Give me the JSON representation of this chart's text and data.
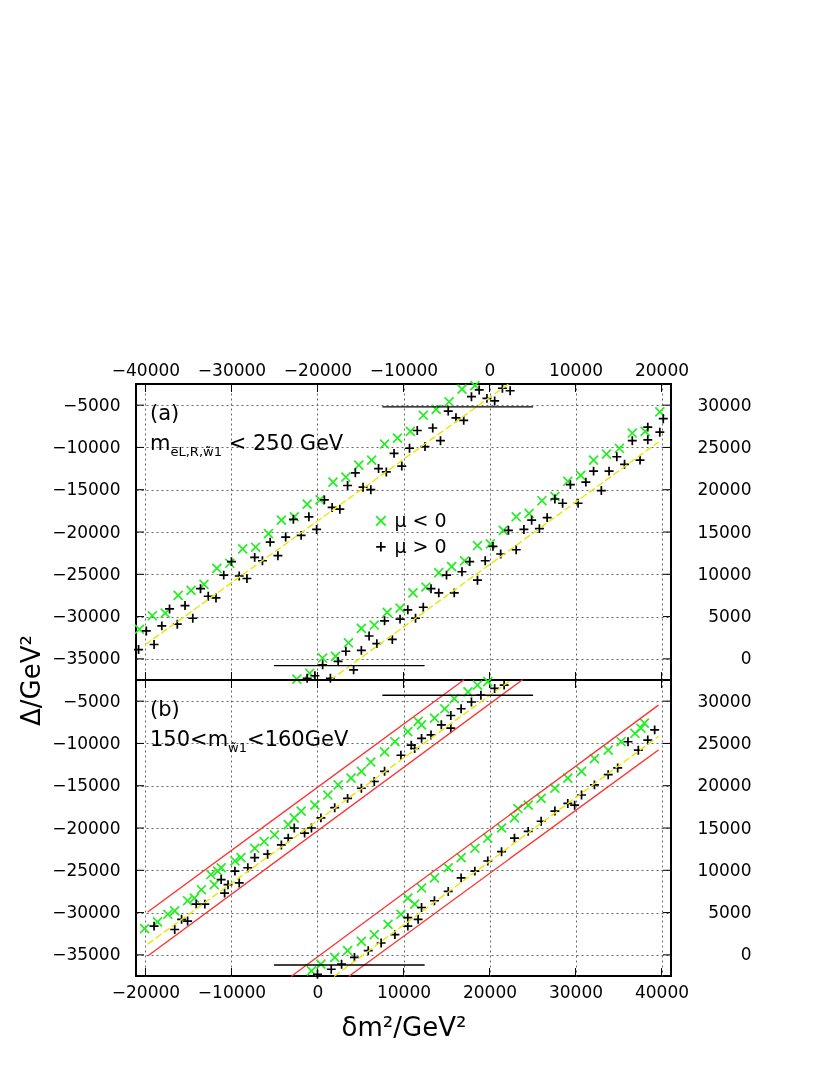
{
  "chart_data": [
    {
      "type": "scatter",
      "annotations": [
        "(a)",
        "m$_{ẽL,R,w̃1}$ < 250 GeV"
      ],
      "ylabel": "Δ/GeV²",
      "xlim": [
        -41100,
        21100
      ],
      "xticks": [
        -40000,
        -30000,
        -20000,
        -10000,
        0,
        10000,
        20000
      ],
      "ylim": [
        -37500,
        -2500
      ],
      "yticks": [
        -35000,
        -30000,
        -25000,
        -20000,
        -15000,
        -10000,
        -5000
      ],
      "y2lim": [
        -2500,
        32500
      ],
      "y2ticks": [
        0,
        5000,
        10000,
        15000,
        20000,
        25000,
        30000
      ],
      "grid": true,
      "legend": "center",
      "series": [
        {
          "name": "μ < 0",
          "color": "#22ee22",
          "marker": "x",
          "x": [
            -40700,
            -39200,
            -37700,
            -36200,
            -34700,
            -33200,
            -31700,
            -30200,
            -28700,
            -27200,
            -25700,
            -24200,
            -22700,
            -21200,
            -19700,
            -18200,
            -16700,
            -15200,
            -13700,
            -12200,
            -10700,
            -9200,
            -7700,
            -6200,
            -4700,
            -3200,
            -1700,
            -22400,
            -20900,
            -19400,
            -17900,
            -16400,
            -14900,
            -13400,
            -11900,
            -10400,
            -8900,
            -7400,
            -5900,
            -4400,
            -2900,
            -1400,
            100,
            1600,
            3100,
            4600,
            6100,
            7600,
            9100,
            10600,
            12100,
            13600,
            15100,
            16600,
            18100,
            19800
          ],
          "values": [
            -31500,
            -29900,
            -29600,
            -27500,
            -26900,
            -26200,
            -24300,
            -23700,
            -22000,
            -21800,
            -20200,
            -18600,
            -18200,
            -16700,
            -16200,
            -14100,
            -13500,
            -12100,
            -11500,
            -9600,
            -8900,
            -8100,
            -6200,
            -5500,
            -4600,
            -3100,
            -2700,
            -37400,
            -36700,
            -34900,
            -34700,
            -33100,
            -31400,
            -31000,
            -29500,
            -29000,
            -27200,
            -26500,
            -24800,
            -24100,
            -23400,
            -21600,
            -21400,
            -19800,
            -18200,
            -17800,
            -16300,
            -15800,
            -14000,
            -13300,
            -11500,
            -10800,
            -10100,
            -8300,
            -8100,
            -5800
          ]
        },
        {
          "name": "μ > 0",
          "color": "#000000",
          "marker": "cross",
          "x": [
            -40800,
            -39900,
            -39000,
            -38100,
            -37200,
            -36300,
            -35400,
            -34500,
            -33600,
            -32700,
            -31800,
            -30900,
            -30000,
            -29100,
            -28200,
            -27300,
            -26400,
            -25500,
            -24600,
            -23700,
            -22800,
            -21900,
            -21000,
            -20100,
            -19200,
            -18300,
            -17400,
            -16500,
            -15600,
            -14700,
            -13800,
            -12900,
            -12000,
            -11100,
            -10200,
            -9300,
            -8400,
            -7500,
            -6600,
            -5700,
            -4800,
            -3900,
            -3000,
            -2100,
            -1200,
            -300,
            600,
            1500,
            2400,
            -21200,
            -20300,
            -19400,
            -18500,
            -17600,
            -16700,
            -15800,
            -14900,
            -14000,
            -13100,
            -12200,
            -11300,
            -10400,
            -9500,
            -8600,
            -7700,
            -6800,
            -5900,
            -5000,
            -4100,
            -3200,
            -2300,
            -1400,
            -500,
            400,
            1300,
            2200,
            3100,
            4000,
            4900,
            5800,
            6700,
            7600,
            8500,
            9400,
            10300,
            11200,
            12100,
            13000,
            13900,
            14800,
            15700,
            16600,
            17500,
            18400,
            18400,
            19800,
            20200
          ],
          "values": [
            -33900,
            -31700,
            -33300,
            -31100,
            -29100,
            -30900,
            -28700,
            -30200,
            -26700,
            -27600,
            -27800,
            -25100,
            -23500,
            -25200,
            -25500,
            -23000,
            -23400,
            -21200,
            -22800,
            -20600,
            -18500,
            -20400,
            -18200,
            -19700,
            -16200,
            -17100,
            -17300,
            -14500,
            -13000,
            -14700,
            -15000,
            -12500,
            -12900,
            -10700,
            -12200,
            -10100,
            -8000,
            -9900,
            -7700,
            -9200,
            -5700,
            -6500,
            -6800,
            -4000,
            -3200,
            -4200,
            -4500,
            -3000,
            -3300,
            -37300,
            -37000,
            -35700,
            -37300,
            -35300,
            -34100,
            -36300,
            -34000,
            -32300,
            -33200,
            -30500,
            -32700,
            -30300,
            -29200,
            -30200,
            -28900,
            -26700,
            -27200,
            -25100,
            -27200,
            -24700,
            -23500,
            -25700,
            -23400,
            -21700,
            -22600,
            -19800,
            -22100,
            -19700,
            -18600,
            -19600,
            -18300,
            -16100,
            -16600,
            -14400,
            -16600,
            -14100,
            -12800,
            -15100,
            -12800,
            -11100,
            -12000,
            -9200,
            -11500,
            -9100,
            -7600,
            -8200,
            -6600
          ]
        },
        {
          "type": "line",
          "color": "#e8e800",
          "line_style": "dashed",
          "x": [
            -40000,
            2200
          ],
          "values": [
            -33300,
            -2500
          ]
        },
        {
          "type": "line",
          "color": "#e8e800",
          "line_style": "dashed",
          "x": [
            -18500,
            19600
          ],
          "values": [
            -37500,
            -9400
          ]
        },
        {
          "type": "line",
          "color": "#000000",
          "line_style": "solid",
          "x": [
            -12400,
            5000
          ],
          "values": [
            -5200,
            -5200
          ]
        },
        {
          "type": "line",
          "color": "#000000",
          "line_style": "solid",
          "x": [
            -25000,
            -7600
          ],
          "values": [
            -35800,
            -35800
          ]
        }
      ]
    },
    {
      "type": "scatter",
      "annotations": [
        "(b)",
        "150<m$_{w̃1}$<160GeV"
      ],
      "xlabel": "δm²/GeV²",
      "xlim": [
        -21100,
        41100
      ],
      "xticks": [
        -20000,
        -10000,
        0,
        10000,
        20000,
        30000,
        40000
      ],
      "ylim": [
        -37500,
        -2500
      ],
      "yticks": [
        -35000,
        -30000,
        -25000,
        -20000,
        -15000,
        -10000,
        -5000
      ],
      "y2lim": [
        -2500,
        32500
      ],
      "y2ticks": [
        0,
        5000,
        10000,
        15000,
        20000,
        25000,
        30000
      ],
      "grid": true,
      "series": [
        {
          "color": "#22ee22",
          "marker": "x",
          "x": [
            -20100,
            -18600,
            -17400,
            -16600,
            -15100,
            -14300,
            -13500,
            -12400,
            -11600,
            -12000,
            -11200,
            -9600,
            -8900,
            -7300,
            -6200,
            -5000,
            -3400,
            -2700,
            -1900,
            -300,
            1200,
            2400,
            3900,
            5100,
            6200,
            7800,
            9000,
            10500,
            11700,
            12100,
            13600,
            14800,
            15900,
            17500,
            18600,
            19800,
            -700,
            400,
            2000,
            3500,
            5100,
            6600,
            8200,
            9700,
            11300,
            10500,
            12100,
            13600,
            15200,
            16700,
            18300,
            19800,
            21400,
            22900,
            23300,
            24500,
            26000,
            27600,
            29100,
            30700,
            32200,
            33800,
            35300,
            36900,
            37600,
            38000
          ],
          "values": [
            -31900,
            -31100,
            -30200,
            -29800,
            -28600,
            -28300,
            -27300,
            -25500,
            -25100,
            -26700,
            -24700,
            -23900,
            -23500,
            -22400,
            -21600,
            -20800,
            -19600,
            -18800,
            -18000,
            -17300,
            -16100,
            -14900,
            -14100,
            -13300,
            -12200,
            -11000,
            -9800,
            -8600,
            -7400,
            -7800,
            -7000,
            -5900,
            -4700,
            -3900,
            -3100,
            -2700,
            -36900,
            -36100,
            -35300,
            -34500,
            -33400,
            -32600,
            -31400,
            -30200,
            -29000,
            -28300,
            -27100,
            -25900,
            -24700,
            -23500,
            -22400,
            -21200,
            -20000,
            -18800,
            -17700,
            -17300,
            -16500,
            -15300,
            -14100,
            -13300,
            -11800,
            -10800,
            -9800,
            -8800,
            -8200,
            -7600
          ]
        },
        {
          "color": "#000000",
          "marker": "cross",
          "x": [
            -19000,
            -16600,
            -15800,
            -15100,
            -14100,
            -13100,
            -11200,
            -10800,
            -10400,
            -9100,
            -9600,
            -8100,
            -7300,
            -5800,
            -4200,
            -3400,
            -2700,
            -1500,
            -700,
            400,
            2000,
            3500,
            5100,
            6600,
            7800,
            9700,
            11300,
            10900,
            12100,
            13200,
            14400,
            15500,
            15500,
            16700,
            17900,
            19000,
            20600,
            21700,
            0,
            1600,
            2800,
            4300,
            5900,
            7400,
            9000,
            10500,
            11700,
            10500,
            12100,
            13600,
            15200,
            16700,
            18300,
            19800,
            21400,
            22900,
            24500,
            26000,
            27600,
            29100,
            29900,
            30700,
            32200,
            33800,
            34900,
            36100,
            37300,
            38400,
            39200
          ],
          "values": [
            -31600,
            -32000,
            -30800,
            -31000,
            -29000,
            -29000,
            -26100,
            -27700,
            -26700,
            -26500,
            -25100,
            -24700,
            -23500,
            -23100,
            -22000,
            -21200,
            -20000,
            -20600,
            -20000,
            -18800,
            -17600,
            -16500,
            -15300,
            -14500,
            -13300,
            -11400,
            -10600,
            -10200,
            -9400,
            -9000,
            -7800,
            -6700,
            -8200,
            -5900,
            -5100,
            -4300,
            -3500,
            -3100,
            -37300,
            -36700,
            -36100,
            -35300,
            -34500,
            -33600,
            -32600,
            -31600,
            -30800,
            -30600,
            -29400,
            -28600,
            -27500,
            -25900,
            -25100,
            -23900,
            -22800,
            -21200,
            -20400,
            -19200,
            -18000,
            -17100,
            -17300,
            -16100,
            -14900,
            -13700,
            -12900,
            -9800,
            -10800,
            -9600,
            -8400
          ]
        },
        {
          "type": "line",
          "color": "#e8e800",
          "line_style": "dashed",
          "x": [
            -19700,
            22500
          ],
          "values": [
            -33700,
            -2500
          ]
        },
        {
          "type": "line",
          "color": "#e8e800",
          "line_style": "dashed",
          "x": [
            2000,
            39600
          ],
          "values": [
            -37500,
            -9200
          ]
        },
        {
          "type": "line",
          "color": "#ff3333",
          "line_style": "solid",
          "x": [
            -19700,
            17000
          ],
          "values": [
            -29900,
            -2500
          ]
        },
        {
          "type": "line",
          "color": "#ff3333",
          "line_style": "solid",
          "x": [
            -19700,
            23800
          ],
          "values": [
            -35100,
            -2500
          ]
        },
        {
          "type": "line",
          "color": "#ff3333",
          "line_style": "solid",
          "x": [
            -3000,
            39600
          ],
          "values": [
            -37500,
            -5500
          ]
        },
        {
          "type": "line",
          "color": "#ff3333",
          "line_style": "solid",
          "x": [
            3700,
            39600
          ],
          "values": [
            -37500,
            -10800
          ]
        },
        {
          "type": "line",
          "color": "#000000",
          "line_style": "solid",
          "x": [
            7600,
            25000
          ],
          "values": [
            -4300,
            -4300
          ]
        },
        {
          "type": "line",
          "color": "#000000",
          "line_style": "solid",
          "x": [
            -5000,
            12400
          ],
          "values": [
            -36200,
            -36200
          ]
        }
      ]
    }
  ]
}
